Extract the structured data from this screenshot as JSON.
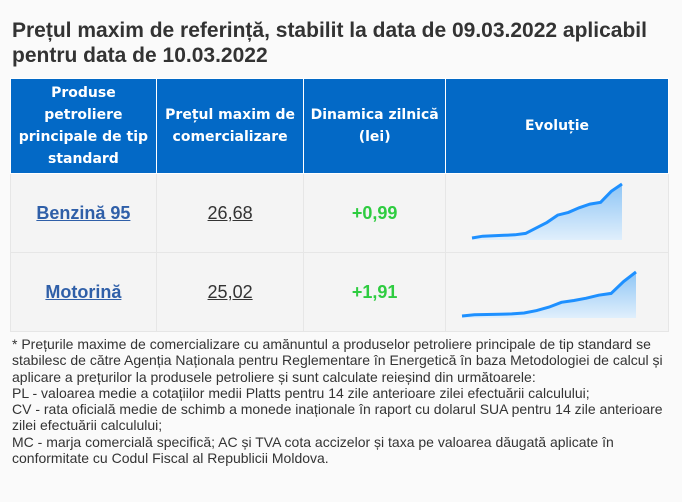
{
  "title": "Prețul maxim de referință, stabilit la data de 09.03.2022 aplicabil pentru data de 10.03.2022",
  "headers": [
    "Produse petroliere principale de tip standard",
    "Prețul maxim de comercializare",
    "Dinamica zilnică (lei)",
    "Evoluție"
  ],
  "rows": [
    {
      "product": "Benzină 95",
      "price": "26,68",
      "dynamic": "+0,99",
      "trend": [
        20.1,
        20.3,
        20.35,
        20.4,
        20.45,
        20.6,
        21.2,
        21.8,
        22.6,
        22.9,
        23.4,
        23.8,
        24.0,
        25.2,
        26.0
      ]
    },
    {
      "product": "Motorină",
      "price": "25,02",
      "dynamic": "+1,91",
      "trend": [
        17.0,
        17.2,
        17.25,
        17.3,
        17.35,
        17.5,
        17.9,
        18.5,
        19.3,
        19.6,
        20.0,
        20.5,
        20.8,
        22.8,
        24.4
      ]
    }
  ],
  "note": [
    "* Prețurile maxime de comercializare cu amănuntul a produselor petroliere principale de tip standard se stabilesc de către Agenția Naționala pentru Reglementare în Energetică în baza Metodologiei de calcul și aplicare a prețurilor la produsele petroliere și sunt calculate reieșind din următoarele:",
    "PL - valoarea medie a cotațiilor medii Platts pentru 14 zile anterioare zilei efectuării calculului;",
    "CV - rata oficială medie de schimb a monede inaționale în raport cu dolarul SUA pentru 14 zile anterioare zilei efectuării calculului;",
    "MC - marja comercială specifică; AC și TVA cota accizelor și taxa pe valoarea dăugată aplicate în conformitate cu Codul Fiscal al Republicii Moldova."
  ],
  "colors": {
    "header": "#0369c6",
    "positive": "#2ecc40",
    "line": "#1e90ff"
  }
}
